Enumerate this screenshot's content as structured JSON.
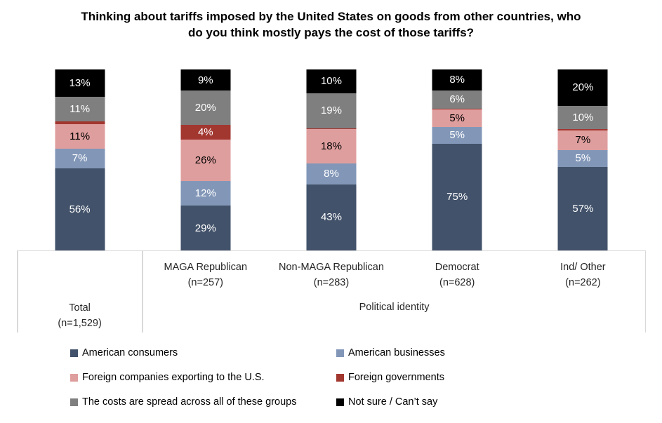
{
  "title": "Thinking about tariffs imposed by the United States on goods from other countries, who do you think mostly pays the cost of those tariffs?",
  "chart_data": {
    "type": "bar",
    "stacked": true,
    "percent": true,
    "unit": "%",
    "grid": false,
    "legend_position": "bottom",
    "group_label": "Political identity",
    "categories": [
      {
        "label": "Total",
        "n": "(n=1,529)"
      },
      {
        "label": "MAGA Republican",
        "n": "(n=257)"
      },
      {
        "label": "Non-MAGA Republican",
        "n": "(n=283)"
      },
      {
        "label": "Democrat",
        "n": "(n=628)"
      },
      {
        "label": "Ind/ Other",
        "n": "(n=262)"
      }
    ],
    "series": [
      {
        "name": "American consumers",
        "color": "#42526A",
        "label_color": "#FFFFFF",
        "values": [
          56,
          29,
          43,
          75,
          57
        ],
        "labels": [
          "56%",
          "29%",
          "43%",
          "75%",
          "57%"
        ]
      },
      {
        "name": "American businesses",
        "color": "#8297B8",
        "label_color": "#FFFFFF",
        "values": [
          7,
          12,
          8,
          5,
          5
        ],
        "labels": [
          "7%",
          "12%",
          "8%",
          "5%",
          "5%"
        ]
      },
      {
        "name": "Foreign companies exporting to the U.S.",
        "color": "#DF9E9E",
        "label_color": "#000000",
        "values": [
          11,
          26,
          18,
          5,
          7
        ],
        "labels": [
          "11%",
          "26%",
          "18%",
          "5%",
          "7%"
        ]
      },
      {
        "name": "Foreign governments",
        "color": "#A23730",
        "label_color": "#FFFFFF",
        "values": [
          2,
          4,
          1,
          1,
          1
        ],
        "labels": [
          null,
          "4%",
          null,
          null,
          null
        ]
      },
      {
        "name": "The costs are spread across all of these groups",
        "color": "#7F7F7F",
        "label_color": "#FFFFFF",
        "values": [
          11,
          20,
          19,
          6,
          10
        ],
        "labels": [
          "11%",
          "20%",
          "19%",
          "6%",
          "10%"
        ]
      },
      {
        "name": "Not sure / Can’t say",
        "color": "#000000",
        "label_color": "#FFFFFF",
        "values": [
          13,
          9,
          10,
          8,
          20
        ],
        "labels": [
          "13%",
          "9%",
          "10%",
          "8%",
          "20%"
        ]
      }
    ],
    "axis_line_color": "#D9D9D9"
  }
}
